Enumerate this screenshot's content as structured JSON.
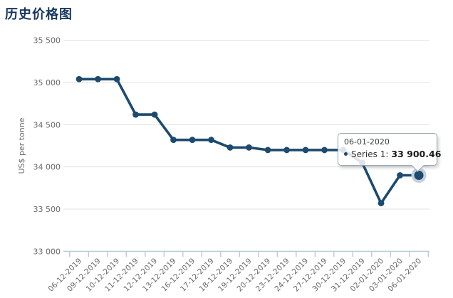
{
  "title": "历史价格图",
  "colors": {
    "title": "#17375e",
    "line": "#1d4a6e",
    "marker": "#1d4a6e",
    "halo": "#c3d0dc",
    "grid": "#e0e0e0",
    "axis": "#b7ccd9",
    "label": "#6a6a6a",
    "tooltip_border": "#9aa7b3"
  },
  "chart_data": {
    "type": "line",
    "title": "历史价格图",
    "xlabel": "",
    "ylabel": "US$ per tonne",
    "ylim": [
      33000,
      35500
    ],
    "ytick_step": 500,
    "yticks": [
      {
        "value": 35500,
        "label": "35 500"
      },
      {
        "value": 35000,
        "label": "35 000"
      },
      {
        "value": 34500,
        "label": "34 500"
      },
      {
        "value": 34000,
        "label": "34 000"
      },
      {
        "value": 33500,
        "label": "33 500"
      },
      {
        "value": 33000,
        "label": "33 000"
      }
    ],
    "categories": [
      "06-12-2019",
      "09-12-2019",
      "10-12-2019",
      "11-12-2019",
      "12-12-2019",
      "13-12-2019",
      "16-12-2019",
      "17-12-2019",
      "18-12-2019",
      "19-12-2019",
      "20-12-2019",
      "23-12-2019",
      "24-12-2019",
      "27-12-2019",
      "30-12-2019",
      "31-12-2019",
      "02-01-2020",
      "03-01-2020",
      "06-01-2020"
    ],
    "series": [
      {
        "name": "Series 1",
        "values": [
          35040,
          35040,
          35040,
          34620,
          34620,
          34320,
          34320,
          34320,
          34230,
          34230,
          34200,
          34200,
          34200,
          34200,
          34200,
          34050,
          33570,
          33900,
          33900.46
        ]
      }
    ],
    "grid": "horizontal",
    "legend_position": "none",
    "highlighted_point": {
      "category": "06-01-2020",
      "series": "Series 1",
      "value": 33900.46
    }
  },
  "tooltip": {
    "date": "06-01-2020",
    "series_label": "Series 1:",
    "value": "33 900.46"
  }
}
